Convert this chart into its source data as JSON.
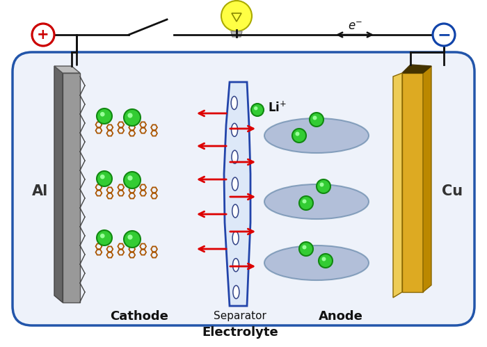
{
  "bg_color": "#eef2fa",
  "border_color": "#2255aa",
  "plus_symbol_color": "#cc0000",
  "minus_symbol_color": "#1144aa",
  "al_label": "Al",
  "cu_label": "Cu",
  "cathode_label": "Cathode",
  "anode_label": "Anode",
  "separator_label": "Separator",
  "electrolyte_label": "Electrolyte",
  "arrow_color": "#dd0000",
  "wire_color": "#111111",
  "graphene_color": "#aa5500",
  "li_ion_color": "#33cc33",
  "li_ion_edge": "#118811",
  "blob_color": "#99aacc",
  "blob_edge": "#6688aa",
  "sep_face_color": "#dde8f8",
  "sep_edge_color": "#2244aa",
  "bulb_color": "#ffff44",
  "bulb_edge": "#aaaa00"
}
